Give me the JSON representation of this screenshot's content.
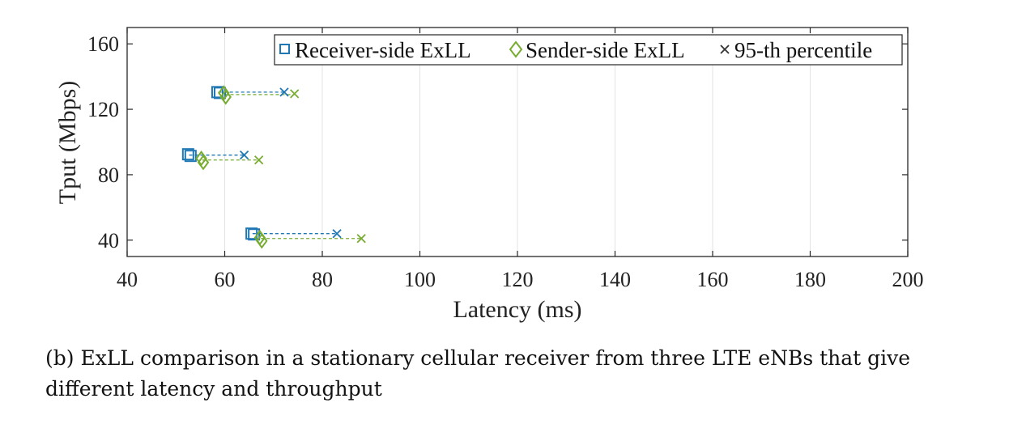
{
  "chart_data": {
    "type": "scatter",
    "title": "",
    "xlabel": "Latency (ms)",
    "ylabel": "Tput (Mbps)",
    "xlim": [
      40,
      200
    ],
    "ylim": [
      30,
      170
    ],
    "xticks": [
      40,
      60,
      80,
      100,
      120,
      140,
      160,
      180,
      200
    ],
    "yticks": [
      40,
      80,
      120,
      160
    ],
    "grid": "vertical",
    "legend_position": "top-right",
    "legend_orientation": "horizontal",
    "series": [
      {
        "name": "Receiver-side ExLL",
        "marker": "square",
        "color": "#1f77b4",
        "points": [
          {
            "x": 58.5,
            "y": 130.5
          },
          {
            "x": 59.0,
            "y": 130.0
          },
          {
            "x": 52.5,
            "y": 92.5
          },
          {
            "x": 53.0,
            "y": 91.5
          },
          {
            "x": 65.5,
            "y": 44.0
          },
          {
            "x": 66.0,
            "y": 43.5
          }
        ]
      },
      {
        "name": "Sender-side ExLL",
        "marker": "diamond",
        "color": "#77ac30",
        "points": [
          {
            "x": 59.8,
            "y": 130.0
          },
          {
            "x": 60.2,
            "y": 127.5
          },
          {
            "x": 55.2,
            "y": 90.0
          },
          {
            "x": 55.6,
            "y": 87.5
          },
          {
            "x": 67.2,
            "y": 41.5
          },
          {
            "x": 67.6,
            "y": 39.5
          }
        ]
      },
      {
        "name": "95-th percentile",
        "marker": "x",
        "color_receiver": "#1f77b4",
        "color_sender": "#77ac30",
        "points": [
          {
            "side": "receiver",
            "x": 72.2,
            "y": 130.5
          },
          {
            "side": "sender",
            "x": 74.3,
            "y": 129.5
          },
          {
            "side": "receiver",
            "x": 64.0,
            "y": 92.0
          },
          {
            "side": "sender",
            "x": 67.0,
            "y": 89.0
          },
          {
            "side": "receiver",
            "x": 83.0,
            "y": 44.0
          },
          {
            "side": "sender",
            "x": 88.0,
            "y": 41.0
          }
        ]
      }
    ],
    "links": [
      {
        "side": "receiver",
        "x0": 58.7,
        "x1": 72.2,
        "y": 130.5
      },
      {
        "side": "sender",
        "x0": 60.0,
        "x1": 74.3,
        "y": 129.0
      },
      {
        "side": "receiver",
        "x0": 52.7,
        "x1": 64.0,
        "y": 92.0
      },
      {
        "side": "sender",
        "x0": 55.4,
        "x1": 67.0,
        "y": 89.0
      },
      {
        "side": "receiver",
        "x0": 65.7,
        "x1": 83.0,
        "y": 44.0
      },
      {
        "side": "sender",
        "x0": 67.4,
        "x1": 88.0,
        "y": 41.0
      }
    ]
  },
  "legend": {
    "receiver_label": "Receiver-side ExLL",
    "sender_label": "Sender-side ExLL",
    "percentile_label": "95-th percentile"
  },
  "caption": "(b) ExLL comparison in a stationary cellular receiver from three LTE eNBs that give different latency and throughput"
}
